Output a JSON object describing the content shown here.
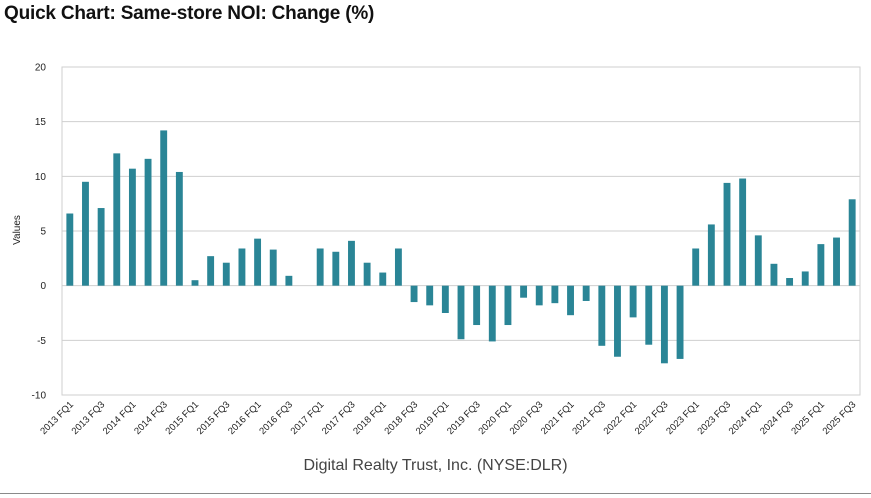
{
  "title": "Quick Chart: Same-store NOI: Change (%)",
  "caption": "Digital Realty Trust, Inc. (NYSE:DLR)",
  "colors": {
    "bar": "#2a8596",
    "grid": "#cfcfcf",
    "axis_text": "#222222"
  },
  "chart_data": {
    "type": "bar",
    "ylabel": "Values",
    "xlabel": "",
    "ylim": [
      -10,
      20
    ],
    "yticks": [
      -10,
      -5,
      0,
      5,
      10,
      15,
      20
    ],
    "grid": true,
    "tick_labels": [
      "2013 FQ1",
      "2013 FQ3",
      "2014 FQ1",
      "2014 FQ3",
      "2015 FQ1",
      "2015 FQ3",
      "2016 FQ1",
      "2016 FQ3",
      "2017 FQ1",
      "2017 FQ3",
      "2018 FQ1",
      "2018 FQ3",
      "2019 FQ1",
      "2019 FQ3",
      "2020 FQ1",
      "2020 FQ3",
      "2021 FQ1",
      "2021 FQ3",
      "2022 FQ1",
      "2022 FQ3",
      "2023 FQ1",
      "2023 FQ3",
      "2024 FQ1",
      "2024 FQ3",
      "2025 FQ1",
      "2025 FQ3"
    ],
    "values": [
      6.6,
      9.5,
      7.1,
      12.1,
      10.7,
      11.6,
      14.2,
      10.4,
      0.5,
      2.7,
      2.1,
      3.4,
      4.3,
      3.3,
      0.9,
      null,
      3.4,
      3.1,
      4.1,
      2.1,
      1.2,
      3.4,
      -1.5,
      -1.8,
      -2.5,
      -4.9,
      -3.6,
      -5.1,
      -3.6,
      -1.1,
      -1.8,
      -1.6,
      -2.7,
      -1.4,
      -5.5,
      -6.5,
      -2.9,
      -5.4,
      -7.1,
      -6.7,
      3.4,
      5.6,
      9.4,
      9.8,
      4.6,
      2.0,
      0.7,
      1.3,
      3.8,
      4.4,
      7.9
    ]
  }
}
